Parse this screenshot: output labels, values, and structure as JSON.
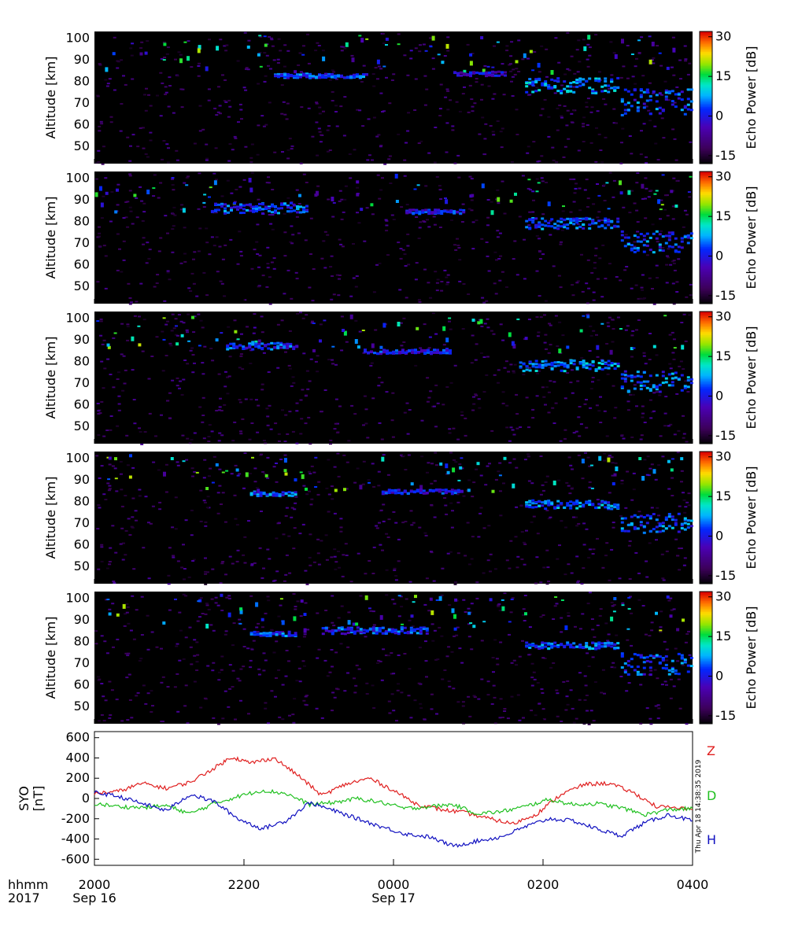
{
  "chart_data": [
    {
      "type": "heatmap",
      "panel": 1,
      "ylabel": "Altitude [km]",
      "yticks": [
        50,
        60,
        70,
        80,
        90,
        100
      ],
      "ylim": [
        42,
        103
      ],
      "colorbar": {
        "label": "Echo Power [dB]",
        "ticks": [
          30,
          15,
          0,
          -15
        ],
        "range": [
          -18,
          32
        ]
      },
      "layers": [
        {
          "t0": 0.3,
          "t1": 0.46,
          "alt0": 82,
          "alt1": 84,
          "db": 5
        },
        {
          "t0": 0.6,
          "t1": 0.69,
          "alt0": 83,
          "alt1": 85,
          "db": 0
        },
        {
          "t0": 0.72,
          "t1": 0.88,
          "alt0": 75,
          "alt1": 82,
          "db": 8
        },
        {
          "t0": 0.88,
          "t1": 1.0,
          "alt0": 64,
          "alt1": 77,
          "db": 5
        }
      ]
    },
    {
      "type": "heatmap",
      "panel": 2,
      "ylabel": "Altitude [km]",
      "yticks": [
        50,
        60,
        70,
        80,
        90,
        100
      ],
      "ylim": [
        42,
        103
      ],
      "colorbar": {
        "label": "Echo Power [dB]",
        "ticks": [
          30,
          15,
          0,
          -15
        ],
        "range": [
          -18,
          32
        ]
      },
      "layers": [
        {
          "t0": 0.2,
          "t1": 0.36,
          "alt0": 84,
          "alt1": 89,
          "db": 5
        },
        {
          "t0": 0.52,
          "t1": 0.62,
          "alt0": 84,
          "alt1": 86,
          "db": 2
        },
        {
          "t0": 0.72,
          "t1": 0.88,
          "alt0": 77,
          "alt1": 82,
          "db": 6
        },
        {
          "t0": 0.88,
          "t1": 1.0,
          "alt0": 66,
          "alt1": 76,
          "db": 5
        }
      ]
    },
    {
      "type": "heatmap",
      "panel": 3,
      "ylabel": "Altitude [km]",
      "yticks": [
        50,
        60,
        70,
        80,
        90,
        100
      ],
      "ylim": [
        42,
        103
      ],
      "colorbar": {
        "label": "Echo Power [dB]",
        "ticks": [
          30,
          15,
          0,
          -15
        ],
        "range": [
          -18,
          32
        ]
      },
      "layers": [
        {
          "t0": 0.22,
          "t1": 0.34,
          "alt0": 86,
          "alt1": 89,
          "db": 4
        },
        {
          "t0": 0.45,
          "t1": 0.6,
          "alt0": 84,
          "alt1": 86,
          "db": 2
        },
        {
          "t0": 0.71,
          "t1": 0.88,
          "alt0": 76,
          "alt1": 81,
          "db": 8
        },
        {
          "t0": 0.88,
          "t1": 1.0,
          "alt0": 66,
          "alt1": 76,
          "db": 6
        }
      ]
    },
    {
      "type": "heatmap",
      "panel": 4,
      "ylabel": "Altitude [km]",
      "yticks": [
        50,
        60,
        70,
        80,
        90,
        100
      ],
      "ylim": [
        42,
        103
      ],
      "colorbar": {
        "label": "Echo Power [dB]",
        "ticks": [
          30,
          15,
          0,
          -15
        ],
        "range": [
          -18,
          32
        ]
      },
      "layers": [
        {
          "t0": 0.26,
          "t1": 0.34,
          "alt0": 83,
          "alt1": 85,
          "db": 6
        },
        {
          "t0": 0.48,
          "t1": 0.62,
          "alt0": 84,
          "alt1": 86,
          "db": 2
        },
        {
          "t0": 0.72,
          "t1": 0.88,
          "alt0": 77,
          "alt1": 81,
          "db": 7
        },
        {
          "t0": 0.88,
          "t1": 1.0,
          "alt0": 66,
          "alt1": 75,
          "db": 6
        }
      ]
    },
    {
      "type": "heatmap",
      "panel": 5,
      "ylabel": "Altitude [km]",
      "yticks": [
        50,
        60,
        70,
        80,
        90,
        100
      ],
      "ylim": [
        42,
        103
      ],
      "colorbar": {
        "label": "Echo Power [dB]",
        "ticks": [
          30,
          15,
          0,
          -15
        ],
        "range": [
          -18,
          32
        ]
      },
      "layers": [
        {
          "t0": 0.26,
          "t1": 0.34,
          "alt0": 83,
          "alt1": 85,
          "db": 5
        },
        {
          "t0": 0.38,
          "t1": 0.56,
          "alt0": 84,
          "alt1": 87,
          "db": 4
        },
        {
          "t0": 0.72,
          "t1": 0.88,
          "alt0": 77,
          "alt1": 80,
          "db": 6
        },
        {
          "t0": 0.88,
          "t1": 1.0,
          "alt0": 65,
          "alt1": 75,
          "db": 5
        }
      ]
    },
    {
      "type": "line",
      "panel": 6,
      "ylabel": "SYO\n[nT]",
      "yticks": [
        600,
        400,
        200,
        0,
        -200,
        -400,
        -600
      ],
      "ylim": [
        -660,
        660
      ],
      "series": [
        {
          "name": "Z",
          "color": "#e02020",
          "x": [
            0.0,
            0.04,
            0.08,
            0.12,
            0.16,
            0.2,
            0.23,
            0.26,
            0.3,
            0.34,
            0.38,
            0.42,
            0.46,
            0.5,
            0.54,
            0.58,
            0.62,
            0.66,
            0.7,
            0.74,
            0.78,
            0.82,
            0.86,
            0.9,
            0.94,
            1.0
          ],
          "values": [
            50,
            70,
            150,
            100,
            160,
            300,
            410,
            350,
            400,
            230,
            30,
            140,
            200,
            80,
            -60,
            -110,
            -140,
            -200,
            -250,
            -150,
            40,
            140,
            150,
            60,
            -80,
            -110
          ]
        },
        {
          "name": "D",
          "color": "#20c020",
          "x": [
            0.0,
            0.04,
            0.08,
            0.12,
            0.16,
            0.2,
            0.24,
            0.28,
            0.32,
            0.36,
            0.4,
            0.44,
            0.48,
            0.52,
            0.56,
            0.6,
            0.64,
            0.68,
            0.72,
            0.76,
            0.8,
            0.84,
            0.88,
            0.92,
            0.96,
            1.0
          ],
          "values": [
            -50,
            -80,
            -90,
            -70,
            -150,
            -50,
            20,
            80,
            50,
            -60,
            -40,
            0,
            -40,
            -100,
            -80,
            -60,
            -150,
            -130,
            -80,
            -10,
            -60,
            -50,
            -90,
            -160,
            -110,
            -100
          ]
        },
        {
          "name": "H",
          "color": "#1010c0",
          "x": [
            0.0,
            0.04,
            0.08,
            0.12,
            0.16,
            0.2,
            0.24,
            0.28,
            0.32,
            0.36,
            0.4,
            0.44,
            0.48,
            0.52,
            0.56,
            0.6,
            0.64,
            0.68,
            0.72,
            0.76,
            0.8,
            0.84,
            0.88,
            0.92,
            0.96,
            1.0
          ],
          "values": [
            60,
            20,
            -50,
            -120,
            40,
            -30,
            -200,
            -300,
            -220,
            -40,
            -120,
            -200,
            -280,
            -350,
            -380,
            -470,
            -420,
            -380,
            -280,
            -200,
            -220,
            -300,
            -370,
            -240,
            -160,
            -220
          ]
        }
      ],
      "timestamp": "Thu Apr 18 14:38:35 2019"
    }
  ],
  "xaxis": {
    "tick_labels": [
      "2000",
      "2200",
      "0000",
      "0200",
      "0400"
    ],
    "date_labels": [
      {
        "at": 0,
        "text": "Sep 16"
      },
      {
        "at": 2,
        "text": "Sep 17"
      }
    ],
    "row_label": "hhmm",
    "year_label": "2017"
  },
  "colors": {
    "background": "#ffffff",
    "panel_background": "#000000"
  }
}
